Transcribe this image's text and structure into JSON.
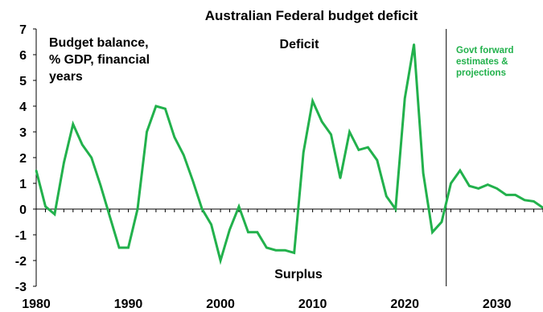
{
  "chart_data": {
    "type": "line",
    "title": "Australian Federal budget deficit",
    "xlabel": "",
    "ylabel": "",
    "xlim": [
      1980,
      2035
    ],
    "ylim": [
      -3,
      7
    ],
    "x_ticks": [
      "1980",
      "1990",
      "2000",
      "2010",
      "2020",
      "2030"
    ],
    "y_ticks": [
      "-3",
      "-2",
      "-1",
      "0",
      "1",
      "2",
      "3",
      "4",
      "5",
      "6",
      "7"
    ],
    "series": [
      {
        "color": "#22b14c",
        "x": [
          1980,
          1981,
          1982,
          1983,
          1984,
          1985,
          1986,
          1987,
          1988,
          1989,
          1990,
          1991,
          1992,
          1993,
          1994,
          1995,
          1996,
          1997,
          1998,
          1999,
          2000,
          2001,
          2002,
          2003,
          2004,
          2005,
          2006,
          2007,
          2008,
          2009,
          2010,
          2011,
          2012,
          2013,
          2014,
          2015,
          2016,
          2017,
          2018,
          2019,
          2020,
          2021,
          2022,
          2023,
          2024,
          2025,
          2026,
          2027,
          2028,
          2029,
          2030,
          2031,
          2032,
          2033,
          2034,
          2035
        ],
        "values": [
          1.5,
          0.1,
          -0.2,
          1.8,
          3.3,
          2.5,
          2.0,
          0.9,
          -0.3,
          -1.5,
          -1.5,
          0.0,
          3.0,
          4.0,
          3.9,
          2.8,
          2.1,
          1.1,
          0.0,
          -0.6,
          -2.0,
          -0.8,
          0.1,
          -0.9,
          -0.9,
          -1.5,
          -1.6,
          -1.6,
          -1.7,
          2.2,
          4.2,
          3.4,
          2.9,
          1.2,
          3.0,
          2.3,
          2.4,
          1.9,
          0.5,
          0.0,
          4.3,
          6.4,
          1.4,
          -0.9,
          -0.5,
          1.0,
          1.5,
          0.9,
          0.8,
          0.95,
          0.8,
          0.55,
          0.55,
          0.35,
          0.3,
          0.05
        ]
      }
    ],
    "vertical_line_x": 2024.5,
    "annotations": {
      "top_left": [
        "Budget balance,",
        "% GDP, financial",
        "years"
      ],
      "deficit": "Deficit",
      "surplus": "Surplus",
      "forecast": [
        "Govt forward",
        "estimates &",
        "projections"
      ]
    },
    "colors": {
      "line": "#22b14c",
      "forecast_text": "#22b14c",
      "axis": "#000000"
    },
    "grid": false,
    "legend": "none"
  }
}
